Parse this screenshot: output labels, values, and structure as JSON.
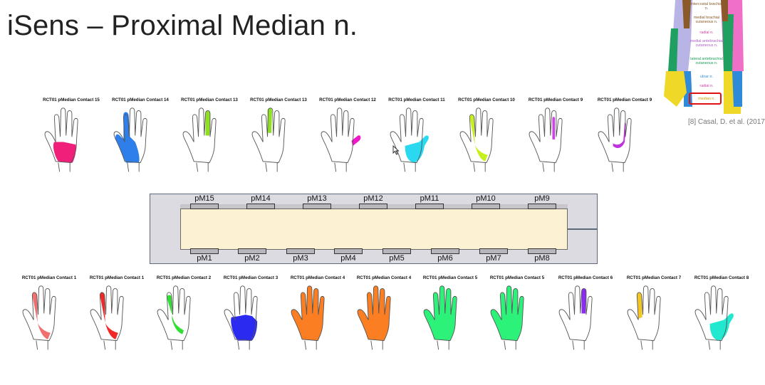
{
  "slide": {
    "title": "iSens – Proximal Median n."
  },
  "reference": {
    "caption": "[8] Casal, D. et al. (2017",
    "legend": [
      {
        "text": "intercostal brachial n.",
        "color": "#8a5a2a"
      },
      {
        "text": "medial brachial cutaneous n.",
        "color": "#8a5a2a"
      },
      {
        "text": "radial n.",
        "color": "#d23fa0"
      },
      {
        "text": "medial antebrachial cutaneous n.",
        "color": "#b060c8"
      },
      {
        "text": "lateral antebrachial cutaneous n.",
        "color": "#1f9a5a"
      },
      {
        "text": "ulnar n.",
        "color": "#2f8ad8"
      },
      {
        "text": "radial n.",
        "color": "#d23fa0"
      },
      {
        "text": "median n.",
        "color": "#c8a000"
      }
    ]
  },
  "top_hands": [
    {
      "caption": "RCT01 pMedian Contact 15",
      "color": "#f0207a",
      "region": "palm-lower"
    },
    {
      "caption": "RCT01 pMedian Contact 14",
      "color": "#2f7fea",
      "region": "lateral-large"
    },
    {
      "caption": "RCT01 pMedian Contact 13",
      "color": "#8ee020",
      "region": "finger-middle"
    },
    {
      "caption": "RCT01 pMedian Contact 13",
      "color": "#8ee020",
      "region": "finger-ring"
    },
    {
      "caption": "RCT01 pMedian Contact 12",
      "color": "#ee18c8",
      "region": "thumb-tip"
    },
    {
      "caption": "RCT01 pMedian Contact 11",
      "color": "#2ad8f0",
      "region": "thumb-palm"
    },
    {
      "caption": "RCT01 pMedian Contact 10",
      "color": "#c8f020",
      "region": "index-thumb"
    },
    {
      "caption": "RCT01 pMedian Contact 9",
      "color": "#d040f0",
      "region": "finger-middle-thin"
    },
    {
      "caption": "RCT01 pMedian Contact 9",
      "color": "#c030e0",
      "region": "index-thumb-thin"
    }
  ],
  "bottom_hands": [
    {
      "caption": "RCT01 pMedian Contact 1",
      "color": "#f07070",
      "region": "index-thumb"
    },
    {
      "caption": "RCT01 pMedian Contact 1",
      "color": "#f02828",
      "region": "index-thumb"
    },
    {
      "caption": "RCT01 pMedian Contact 2",
      "color": "#30e030",
      "region": "index-thumb-small"
    },
    {
      "caption": "RCT01 pMedian Contact 3",
      "color": "#2a2af0",
      "region": "palm-full"
    },
    {
      "caption": "RCT01 pMedian Contact 4",
      "color": "#fb7f22",
      "region": "whole"
    },
    {
      "caption": "RCT01 pMedian Contact 4",
      "color": "#fb7f22",
      "region": "whole"
    },
    {
      "caption": "RCT01 pMedian Contact 5",
      "color": "#2cf27a",
      "region": "whole"
    },
    {
      "caption": "RCT01 pMedian Contact 5",
      "color": "#2cf27a",
      "region": "whole"
    },
    {
      "caption": "RCT01 pMedian Contact 6",
      "color": "#8a2cf0",
      "region": "finger-middle"
    },
    {
      "caption": "RCT01 pMedian Contact 7",
      "color": "#f4c420",
      "region": "finger-index"
    },
    {
      "caption": "RCT01 pMedian Contact 8",
      "color": "#22e8d0",
      "region": "thumb-palm"
    }
  ],
  "electrode": {
    "top_contacts": [
      "pM15",
      "pM14",
      "pM13",
      "pM12",
      "pM11",
      "pM10",
      "pM9"
    ],
    "bottom_contacts": [
      "pM1",
      "pM2",
      "pM3",
      "pM4",
      "pM5",
      "pM6",
      "pM7",
      "pM8"
    ],
    "body_color": "#fdf1d3",
    "frame_color": "#dcdbe2"
  }
}
